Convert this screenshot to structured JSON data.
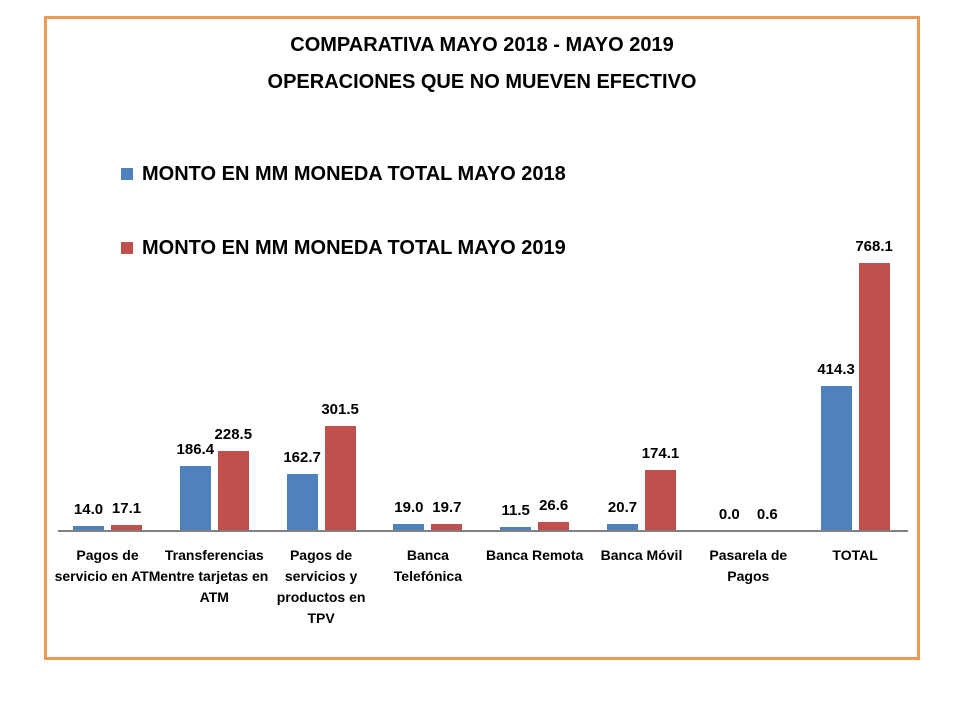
{
  "colors": {
    "frame_border": "#EB9A53",
    "axis_line": "#808080",
    "text": "#000000",
    "series_2018": "#4F81BD",
    "series_2019": "#C0504D"
  },
  "chart_data": {
    "type": "bar",
    "title": "COMPARATIVA MAYO 2018 - MAYO 2019",
    "subtitle": "OPERACIONES QUE NO MUEVEN EFECTIVO",
    "categories": [
      "Pagos de servicio en ATM",
      "Transferencias entre tarjetas en ATM",
      "Pagos de servicios y productos en TPV",
      "Banca Telefónica",
      "Banca Remota",
      "Banca Móvil",
      "Pasarela de Pagos",
      "TOTAL"
    ],
    "series": [
      {
        "name": "MONTO EN MM MONEDA TOTAL MAYO 2018",
        "color": "#4F81BD",
        "values": [
          14.0,
          186.4,
          162.7,
          19.0,
          11.5,
          20.7,
          0.0,
          414.3
        ]
      },
      {
        "name": "MONTO EN MM MONEDA TOTAL MAYO 2019",
        "color": "#C0504D",
        "values": [
          17.1,
          228.5,
          301.5,
          19.7,
          26.6,
          174.1,
          0.6,
          768.1
        ]
      }
    ],
    "value_labels": true,
    "value_label_decimals": 1,
    "xlabel": "",
    "ylabel": "",
    "ylim": [
      0,
      800
    ],
    "grid": false,
    "y_axis_visible": false,
    "legend_position": "upper-left"
  }
}
